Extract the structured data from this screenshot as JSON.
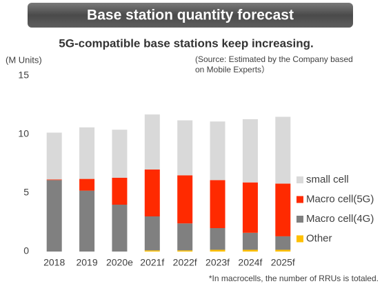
{
  "chart_data": {
    "type": "bar",
    "stacked": true,
    "title": "Base station quantity forecast",
    "subtitle": "5G-compatible base stations keep increasing.",
    "y_label": "(M Units)",
    "source": "(Source: Estimated by the Company based on Mobile Experts）",
    "footnote": "*In macrocells, the number of RRUs is totaled.",
    "categories": [
      "2018",
      "2019",
      "2020e",
      "2021f",
      "2022f",
      "2023f",
      "2024f",
      "2025f"
    ],
    "series": [
      {
        "name": "Other",
        "color": "#ffc000",
        "values": [
          0,
          0,
          0,
          0.1,
          0.1,
          0.15,
          0.15,
          0.15
        ]
      },
      {
        "name": "Macro cell(4G)",
        "color": "#808080",
        "values": [
          6.1,
          5.2,
          4.0,
          2.9,
          2.3,
          1.85,
          1.45,
          1.15
        ]
      },
      {
        "name": "Macro cell(5G)",
        "color": "#ff2a00",
        "values": [
          0.05,
          1.0,
          2.3,
          4.0,
          4.1,
          4.1,
          4.3,
          4.5
        ]
      },
      {
        "name": "small cell",
        "color": "#d9d9d9",
        "values": [
          4.0,
          4.4,
          4.1,
          4.7,
          4.7,
          5.0,
          5.4,
          5.7
        ]
      }
    ],
    "ylim": [
      0,
      15
    ],
    "yticks": [
      0,
      5,
      10,
      15
    ],
    "grid": false,
    "legend": "right"
  }
}
